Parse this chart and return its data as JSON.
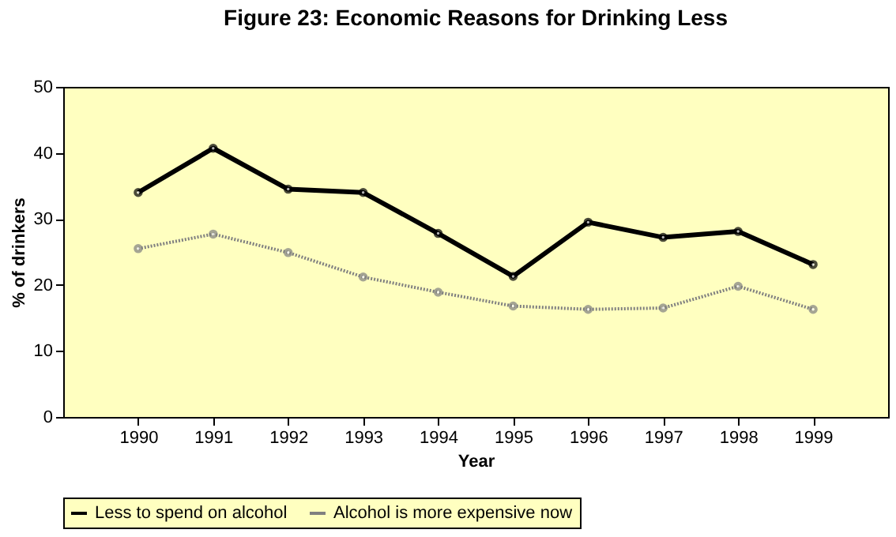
{
  "chart_data": {
    "type": "line",
    "title": "Figure 23: Economic Reasons for Drinking Less",
    "xlabel": "Year",
    "ylabel": "% of drinkers",
    "categories": [
      "1990",
      "1991",
      "1992",
      "1993",
      "1994",
      "1995",
      "1996",
      "1997",
      "1998",
      "1999"
    ],
    "series": [
      {
        "name": "Less to spend on alcohol",
        "color": "#000000",
        "line_style": "solid",
        "values": [
          34.0,
          40.7,
          34.5,
          34.0,
          27.8,
          21.3,
          29.5,
          27.2,
          28.1,
          23.1
        ]
      },
      {
        "name": "Alcohol is more expensive now",
        "color": "#808080",
        "values": [
          25.5,
          27.7,
          24.9,
          21.2,
          18.9,
          16.8,
          16.3,
          16.5,
          19.8,
          16.3
        ],
        "line_style": "dotted"
      }
    ],
    "ylim": [
      0,
      50
    ],
    "yticks": [
      0,
      10,
      20,
      30,
      40,
      50
    ],
    "grid": false,
    "legend": "bottom",
    "marker": "circle"
  }
}
